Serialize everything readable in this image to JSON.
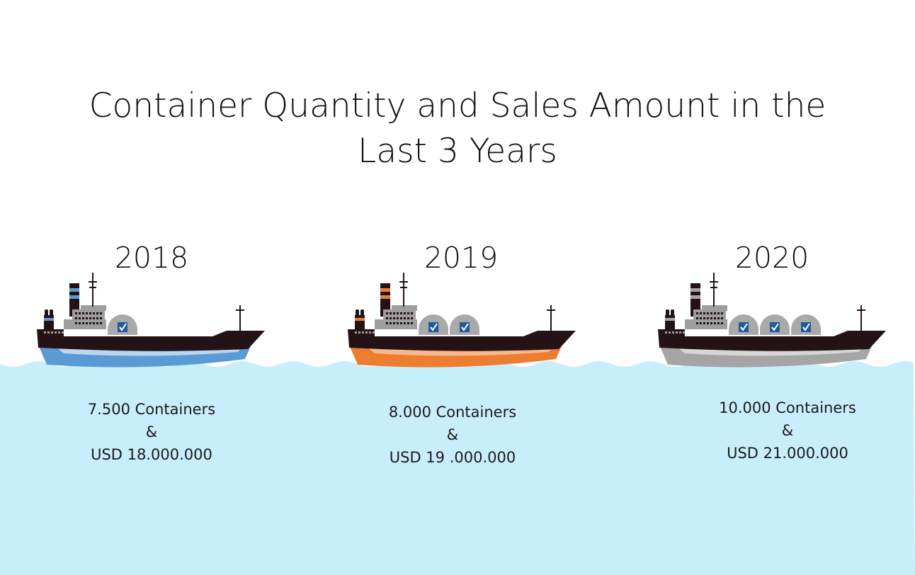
{
  "title_line1": "Container Quantity and Sales Amount in the",
  "title_line2": "Last 3 Years",
  "colors": {
    "sea": "#c9eefb",
    "hull_dark": "#241316",
    "superstructure": "#9e9e9e",
    "container_dome": "#a9a9a9",
    "logo_blue": "#1f5a9e"
  },
  "years": [
    {
      "year": "2018",
      "containers": "7.500 Containers",
      "amp": "&",
      "sales": "USD 18.000.000",
      "accent": "#5b9bd5",
      "accent_light": "#bcd6f0",
      "container_count": 1
    },
    {
      "year": "2019",
      "containers": "8.000 Containers",
      "amp": "&",
      "sales": "USD 19 .000.000",
      "accent": "#ed7d31",
      "accent_light": "#f6b88e",
      "container_count": 2
    },
    {
      "year": "2020",
      "containers": "10.000 Containers",
      "amp": "&",
      "sales": "USD 21.000.000",
      "accent": "#a5a5a5",
      "accent_light": "#d6d6d6",
      "container_count": 3
    }
  ]
}
